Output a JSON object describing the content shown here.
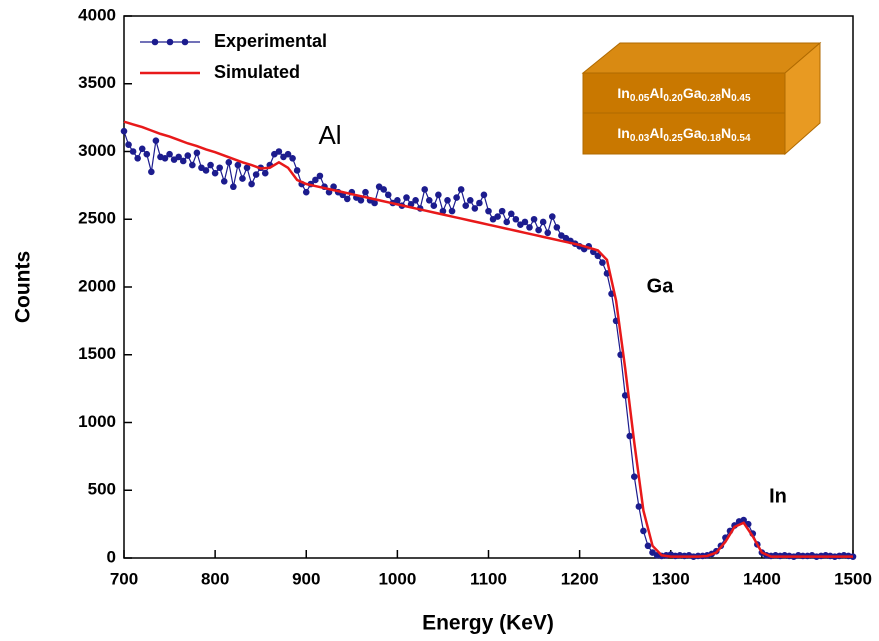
{
  "chart_data": {
    "type": "line",
    "xlabel": "Energy (KeV)",
    "ylabel": "Counts",
    "xlim": [
      700,
      1500
    ],
    "xticks": [
      700,
      800,
      900,
      1000,
      1100,
      1200,
      1300,
      1400,
      1500
    ],
    "ylim": [
      0,
      4000
    ],
    "yticks": [
      0,
      500,
      1000,
      1500,
      2000,
      2500,
      3000,
      3500,
      4000
    ],
    "legend": "upper left",
    "series": [
      {
        "name": "Experimental",
        "color": "#1c1c8e",
        "markers": true,
        "x": [
          700,
          705,
          710,
          715,
          720,
          725,
          730,
          735,
          740,
          745,
          750,
          755,
          760,
          765,
          770,
          775,
          780,
          785,
          790,
          795,
          800,
          805,
          810,
          815,
          820,
          825,
          830,
          835,
          840,
          845,
          850,
          855,
          860,
          865,
          870,
          875,
          880,
          885,
          890,
          895,
          900,
          905,
          910,
          915,
          920,
          925,
          930,
          935,
          940,
          945,
          950,
          955,
          960,
          965,
          970,
          975,
          980,
          985,
          990,
          995,
          1000,
          1005,
          1010,
          1015,
          1020,
          1025,
          1030,
          1035,
          1040,
          1045,
          1050,
          1055,
          1060,
          1065,
          1070,
          1075,
          1080,
          1085,
          1090,
          1095,
          1100,
          1105,
          1110,
          1115,
          1120,
          1125,
          1130,
          1135,
          1140,
          1145,
          1150,
          1155,
          1160,
          1165,
          1170,
          1175,
          1180,
          1185,
          1190,
          1195,
          1200,
          1205,
          1210,
          1215,
          1220,
          1225,
          1230,
          1235,
          1240,
          1245,
          1250,
          1255,
          1260,
          1265,
          1270,
          1275,
          1280,
          1285,
          1290,
          1295,
          1300,
          1305,
          1310,
          1315,
          1320,
          1325,
          1330,
          1335,
          1340,
          1345,
          1350,
          1355,
          1360,
          1365,
          1370,
          1375,
          1380,
          1385,
          1390,
          1395,
          1400,
          1405,
          1410,
          1415,
          1420,
          1425,
          1430,
          1435,
          1440,
          1445,
          1450,
          1455,
          1460,
          1465,
          1470,
          1475,
          1480,
          1485,
          1490,
          1495,
          1500
        ],
        "values": [
          3150,
          3050,
          3000,
          2950,
          3020,
          2980,
          2850,
          3080,
          2960,
          2950,
          2980,
          2940,
          2960,
          2930,
          2970,
          2900,
          2990,
          2880,
          2860,
          2900,
          2840,
          2880,
          2780,
          2920,
          2740,
          2900,
          2800,
          2880,
          2760,
          2830,
          2880,
          2840,
          2900,
          2980,
          3000,
          2960,
          2980,
          2950,
          2860,
          2760,
          2700,
          2760,
          2790,
          2820,
          2740,
          2700,
          2740,
          2700,
          2680,
          2650,
          2700,
          2660,
          2640,
          2700,
          2640,
          2620,
          2740,
          2720,
          2680,
          2620,
          2640,
          2600,
          2660,
          2610,
          2640,
          2580,
          2720,
          2640,
          2600,
          2680,
          2560,
          2640,
          2560,
          2660,
          2720,
          2600,
          2640,
          2580,
          2620,
          2680,
          2560,
          2500,
          2520,
          2560,
          2480,
          2540,
          2500,
          2460,
          2480,
          2440,
          2500,
          2420,
          2480,
          2400,
          2520,
          2440,
          2380,
          2360,
          2340,
          2320,
          2300,
          2280,
          2300,
          2260,
          2230,
          2180,
          2100,
          1950,
          1750,
          1500,
          1200,
          900,
          600,
          380,
          200,
          90,
          40,
          20,
          15,
          20,
          25,
          15,
          20,
          15,
          20,
          10,
          15,
          15,
          20,
          30,
          50,
          90,
          150,
          200,
          240,
          270,
          280,
          250,
          180,
          100,
          40,
          20,
          15,
          20,
          15,
          20,
          15,
          10,
          20,
          15,
          15,
          20,
          10,
          15,
          20,
          15,
          10,
          15,
          20,
          15,
          10
        ]
      },
      {
        "name": "Simulated",
        "color": "#e8191a",
        "markers": false,
        "x": [
          700,
          710,
          720,
          730,
          740,
          750,
          760,
          770,
          780,
          790,
          800,
          810,
          820,
          830,
          840,
          850,
          860,
          870,
          880,
          890,
          900,
          910,
          920,
          930,
          940,
          950,
          960,
          970,
          980,
          990,
          1000,
          1010,
          1020,
          1030,
          1040,
          1050,
          1060,
          1070,
          1080,
          1090,
          1100,
          1110,
          1120,
          1130,
          1140,
          1150,
          1160,
          1170,
          1180,
          1190,
          1200,
          1210,
          1220,
          1230,
          1240,
          1250,
          1260,
          1270,
          1280,
          1290,
          1300,
          1310,
          1320,
          1330,
          1340,
          1350,
          1360,
          1370,
          1380,
          1390,
          1400,
          1410,
          1420,
          1430,
          1440,
          1450,
          1460,
          1470,
          1480,
          1490,
          1500
        ],
        "values": [
          3220,
          3200,
          3180,
          3155,
          3130,
          3110,
          3085,
          3060,
          3040,
          3015,
          2995,
          2970,
          2945,
          2920,
          2900,
          2875,
          2880,
          2920,
          2880,
          2790,
          2760,
          2745,
          2730,
          2715,
          2700,
          2685,
          2670,
          2655,
          2640,
          2625,
          2610,
          2595,
          2580,
          2565,
          2550,
          2535,
          2520,
          2505,
          2490,
          2475,
          2460,
          2445,
          2430,
          2415,
          2400,
          2385,
          2370,
          2355,
          2340,
          2325,
          2310,
          2290,
          2270,
          2200,
          1900,
          1400,
          850,
          350,
          90,
          20,
          10,
          10,
          10,
          10,
          15,
          40,
          120,
          230,
          260,
          160,
          40,
          10,
          10,
          10,
          10,
          10,
          10,
          10,
          10,
          10,
          10
        ]
      }
    ],
    "annotations": [
      "Al",
      "Ga",
      "In"
    ],
    "inset_layers": [
      {
        "elements": [
          "In",
          "Al",
          "Ga",
          "N"
        ],
        "fractions": [
          "0.05",
          "0.20",
          "0.28",
          "0.45"
        ]
      },
      {
        "elements": [
          "In",
          "Al",
          "Ga",
          "N"
        ],
        "fractions": [
          "0.03",
          "0.25",
          "0.18",
          "0.54"
        ]
      }
    ]
  }
}
